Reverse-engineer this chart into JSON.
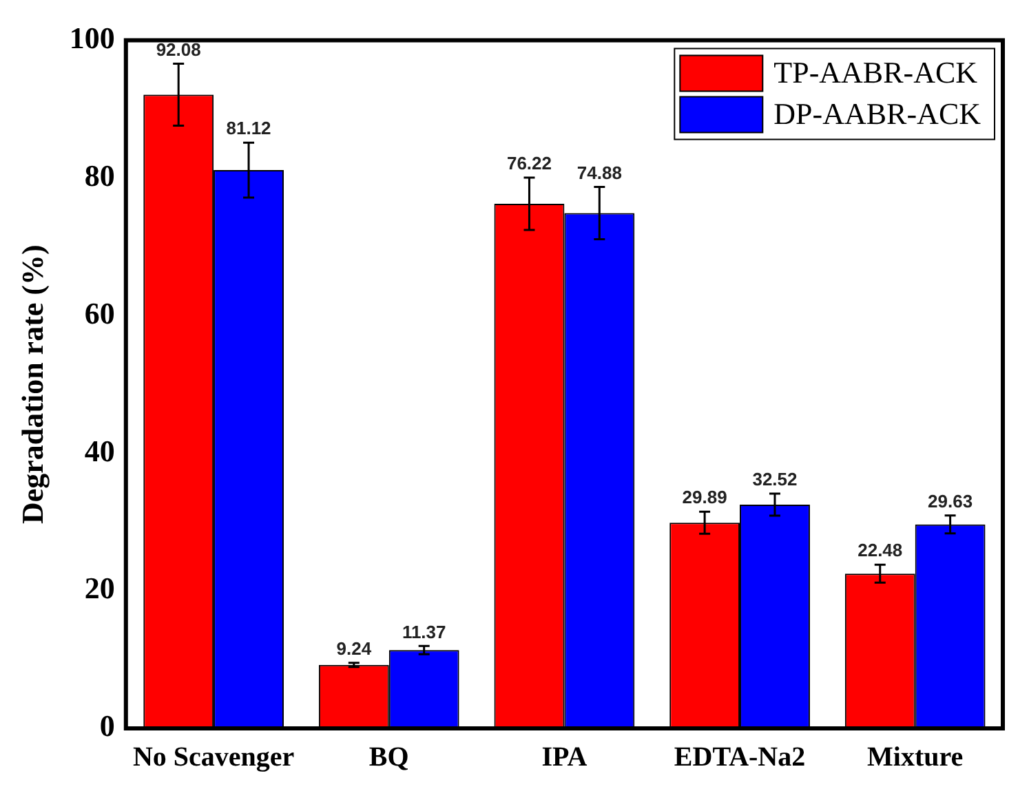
{
  "chart_data": {
    "type": "bar",
    "ylabel": "Degradation rate (%)",
    "categories": [
      "No Scavenger",
      "BQ",
      "IPA",
      "EDTA-Na2",
      "Mixture"
    ],
    "series": [
      {
        "name": "TP-AABR-ACK",
        "color": "#ff0000",
        "values": [
          92.08,
          9.24,
          76.22,
          29.89,
          22.48
        ],
        "errors": [
          4.5,
          0.3,
          3.8,
          1.6,
          1.3
        ]
      },
      {
        "name": "DP-AABR-ACK",
        "color": "#0000ff",
        "values": [
          81.12,
          11.37,
          74.88,
          32.52,
          29.63
        ],
        "errors": [
          4,
          0.6,
          3.8,
          1.6,
          1.3
        ]
      }
    ],
    "ylim": [
      0,
      100
    ],
    "yticks": [
      0,
      20,
      40,
      60,
      80,
      100
    ],
    "grid": false,
    "legend": "top right",
    "data_labels": true
  }
}
